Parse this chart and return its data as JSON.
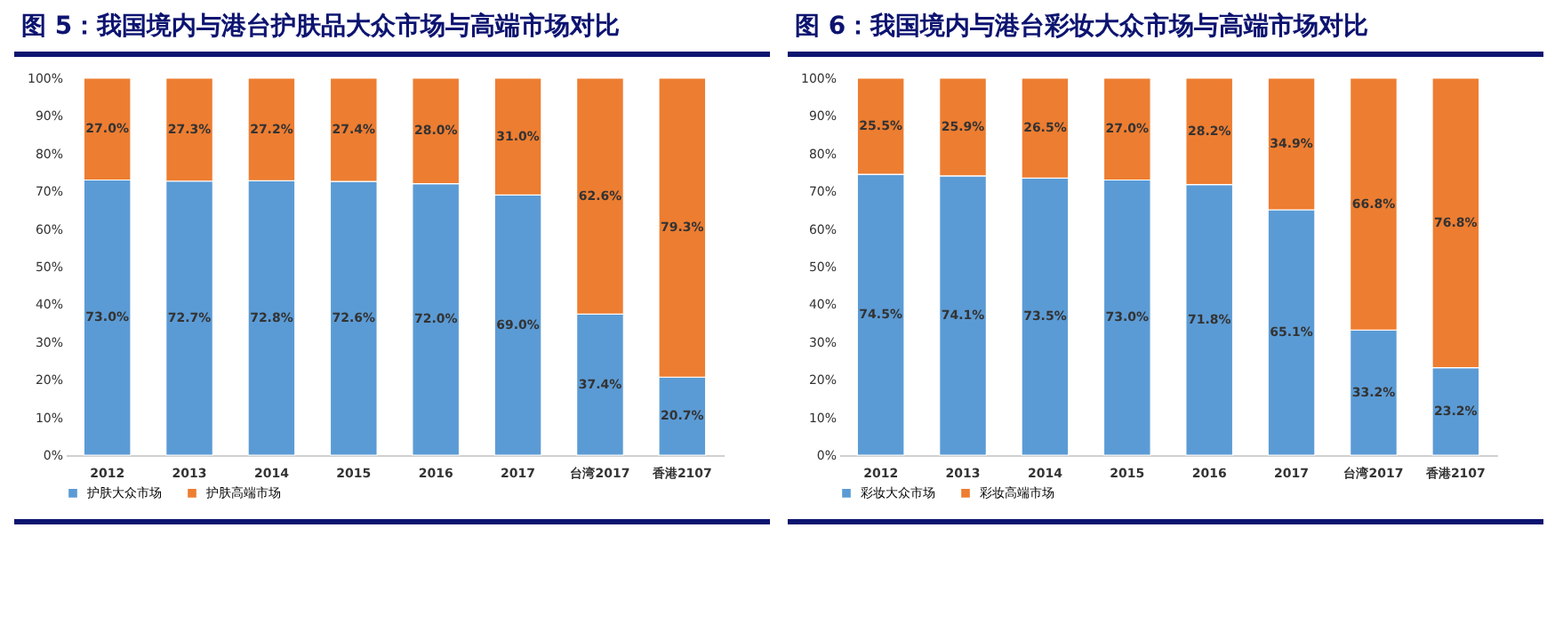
{
  "chart_data": [
    {
      "type": "bar",
      "title": "图 5：我国境内与港台护肤品大众市场与高端市场对比",
      "stacked": true,
      "categories": [
        "2012",
        "2013",
        "2014",
        "2015",
        "2016",
        "2017",
        "台湾2017",
        "香港2107"
      ],
      "series": [
        {
          "name": "护肤大众市场",
          "color": "#5b9bd5",
          "values": [
            73.0,
            72.7,
            72.8,
            72.6,
            72.0,
            69.0,
            37.4,
            20.7
          ],
          "value_labels": [
            "73.0%",
            "72.7%",
            "72.8%",
            "72.6%",
            "72.0%",
            "69.0%",
            "37.4%",
            "20.7%"
          ]
        },
        {
          "name": "护肤高端市场",
          "color": "#ed7d31",
          "values": [
            27.0,
            27.3,
            27.2,
            27.4,
            28.0,
            31.0,
            62.6,
            79.3
          ],
          "value_labels": [
            "27.0%",
            "27.3%",
            "27.2%",
            "27.4%",
            "28.0%",
            "31.0%",
            "62.6%",
            "79.3%"
          ]
        }
      ],
      "ylim": [
        0,
        100
      ],
      "yticks": [
        {
          "value": 0,
          "label": "0%"
        },
        {
          "value": 10,
          "label": "10%"
        },
        {
          "value": 20,
          "label": "20%"
        },
        {
          "value": 30,
          "label": "30%"
        },
        {
          "value": 40,
          "label": "40%"
        },
        {
          "value": 50,
          "label": "50%"
        },
        {
          "value": 60,
          "label": "60%"
        },
        {
          "value": 70,
          "label": "70%"
        },
        {
          "value": 80,
          "label": "80%"
        },
        {
          "value": 90,
          "label": "90%"
        },
        {
          "value": 100,
          "label": "100%"
        }
      ],
      "grid": false,
      "legend": "bottom"
    },
    {
      "type": "bar",
      "title": "图 6：我国境内与港台彩妆大众市场与高端市场对比",
      "stacked": true,
      "categories": [
        "2012",
        "2013",
        "2014",
        "2015",
        "2016",
        "2017",
        "台湾2017",
        "香港2107"
      ],
      "series": [
        {
          "name": "彩妆大众市场",
          "color": "#5b9bd5",
          "values": [
            74.5,
            74.1,
            73.5,
            73.0,
            71.8,
            65.1,
            33.2,
            23.2
          ],
          "value_labels": [
            "74.5%",
            "74.1%",
            "73.5%",
            "73.0%",
            "71.8%",
            "65.1%",
            "33.2%",
            "23.2%"
          ]
        },
        {
          "name": "彩妆高端市场",
          "color": "#ed7d31",
          "values": [
            25.5,
            25.9,
            26.5,
            27.0,
            28.2,
            34.9,
            66.8,
            76.8
          ],
          "value_labels": [
            "25.5%",
            "25.9%",
            "26.5%",
            "27.0%",
            "28.2%",
            "34.9%",
            "66.8%",
            "76.8%"
          ]
        }
      ],
      "ylim": [
        0,
        100
      ],
      "yticks": [
        {
          "value": 0,
          "label": "0%"
        },
        {
          "value": 10,
          "label": "10%"
        },
        {
          "value": 20,
          "label": "20%"
        },
        {
          "value": 30,
          "label": "30%"
        },
        {
          "value": 40,
          "label": "40%"
        },
        {
          "value": 50,
          "label": "50%"
        },
        {
          "value": 60,
          "label": "60%"
        },
        {
          "value": 70,
          "label": "70%"
        },
        {
          "value": 80,
          "label": "80%"
        },
        {
          "value": 90,
          "label": "90%"
        },
        {
          "value": 100,
          "label": "100%"
        }
      ],
      "grid": false,
      "legend": "bottom"
    }
  ]
}
